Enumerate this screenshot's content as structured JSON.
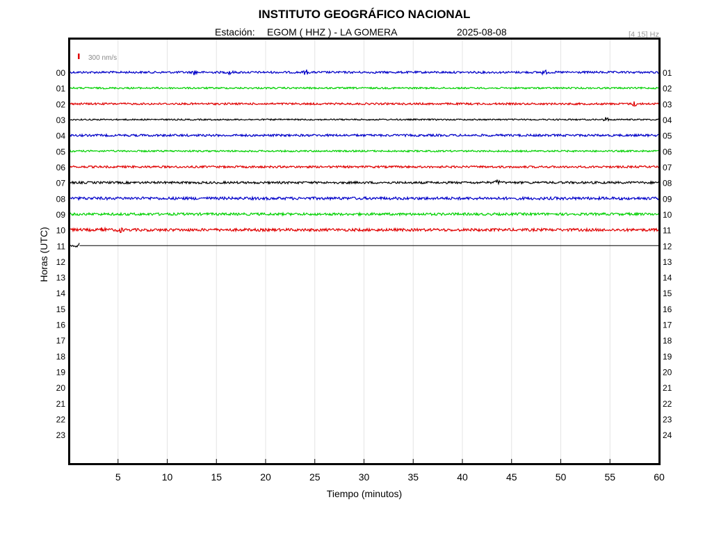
{
  "header": {
    "title": "INSTITUTO GEOGRÁFICO NACIONAL",
    "station_label": "Estación:",
    "station": "EGOM ( HHZ ) - LA GOMERA",
    "date": "2025-08-08",
    "filter": "[4 15] Hz"
  },
  "scale": {
    "label": "300 nm/s",
    "color": "#e00000"
  },
  "chart_data": {
    "type": "line",
    "title": "INSTITUTO GEOGRÁFICO NACIONAL",
    "xlabel": "Tiempo (minutos)",
    "ylabel": "Horas (UTC)",
    "xlim": [
      0,
      60
    ],
    "x_ticks": [
      5,
      10,
      15,
      20,
      25,
      30,
      35,
      40,
      45,
      50,
      55,
      60
    ],
    "grid": true,
    "left_labels": [
      "00",
      "01",
      "02",
      "03",
      "04",
      "05",
      "06",
      "07",
      "08",
      "09",
      "10",
      "11",
      "12",
      "13",
      "14",
      "15",
      "16",
      "17",
      "18",
      "19",
      "20",
      "21",
      "22",
      "23"
    ],
    "right_labels": [
      "01",
      "02",
      "03",
      "04",
      "05",
      "06",
      "07",
      "08",
      "09",
      "10",
      "11",
      "12",
      "13",
      "14",
      "15",
      "16",
      "17",
      "18",
      "19",
      "20",
      "21",
      "22",
      "23",
      "24"
    ],
    "trace_colors": [
      "#0000c8",
      "#00d000",
      "#e00000",
      "#000000"
    ],
    "traces": [
      {
        "hour": 0,
        "end_minute": 60,
        "amplitude": 1.5,
        "events": [
          12.8,
          16.4,
          24.1,
          48.3
        ]
      },
      {
        "hour": 1,
        "end_minute": 60,
        "amplitude": 1.2,
        "events": []
      },
      {
        "hour": 2,
        "end_minute": 60,
        "amplitude": 1.4,
        "events": [
          57.5
        ]
      },
      {
        "hour": 3,
        "end_minute": 60,
        "amplitude": 1.0,
        "events": [
          54.6
        ]
      },
      {
        "hour": 4,
        "end_minute": 60,
        "amplitude": 1.6,
        "events": []
      },
      {
        "hour": 5,
        "end_minute": 60,
        "amplitude": 1.2,
        "events": []
      },
      {
        "hour": 6,
        "end_minute": 60,
        "amplitude": 1.5,
        "events": []
      },
      {
        "hour": 7,
        "end_minute": 60,
        "amplitude": 1.6,
        "events": [
          43.6
        ]
      },
      {
        "hour": 8,
        "end_minute": 60,
        "amplitude": 2.0,
        "events": []
      },
      {
        "hour": 9,
        "end_minute": 60,
        "amplitude": 1.8,
        "events": []
      },
      {
        "hour": 10,
        "end_minute": 60,
        "amplitude": 2.0,
        "events": [
          3.5,
          5.2
        ]
      },
      {
        "hour": 11,
        "end_minute": 1.1,
        "amplitude": 1.5,
        "events": [
          1.0
        ]
      }
    ]
  }
}
